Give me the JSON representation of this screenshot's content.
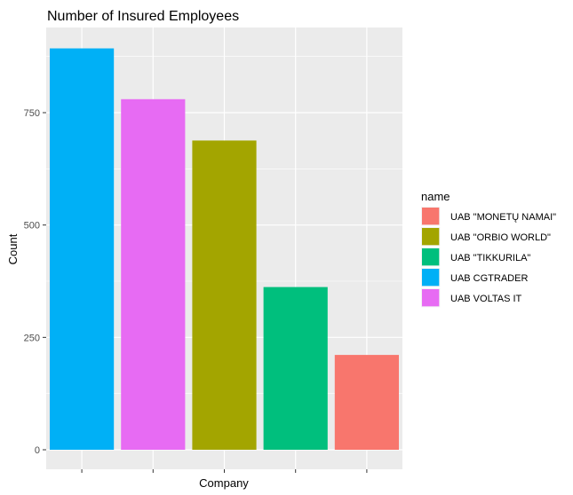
{
  "chart_data": {
    "type": "bar",
    "title": "Number of Insured Employees",
    "xlabel": "Company",
    "ylabel": "Count",
    "categories": [
      "UAB CGTRADER",
      "UAB VOLTAS IT",
      "UAB \"ORBIO WORLD\"",
      "UAB \"TIKKURILA\"",
      "UAB \"MONETŲ NAMAI\""
    ],
    "values": [
      893,
      780,
      688,
      362,
      211
    ],
    "colors": [
      "#00B0F6",
      "#E76BF3",
      "#A3A500",
      "#00BF7D",
      "#F8766D"
    ],
    "ylim": [
      0,
      940
    ],
    "yticks": [
      0,
      250,
      500,
      750
    ],
    "ytick_labels": [
      "0",
      "250",
      "500",
      "750"
    ],
    "show_x_tick_labels": false,
    "grid": true,
    "legend": {
      "title": "name",
      "position": "right",
      "entries": [
        {
          "label": "UAB \"MONETŲ NAMAI\"",
          "color": "#F8766D"
        },
        {
          "label": "UAB \"ORBIO WORLD\"",
          "color": "#A3A500"
        },
        {
          "label": "UAB \"TIKKURILA\"",
          "color": "#00BF7D"
        },
        {
          "label": "UAB CGTRADER",
          "color": "#00B0F6"
        },
        {
          "label": "UAB VOLTAS IT",
          "color": "#E76BF3"
        }
      ]
    },
    "panel_background": "#EBEBEB",
    "gridline_color": "#FFFFFF"
  }
}
